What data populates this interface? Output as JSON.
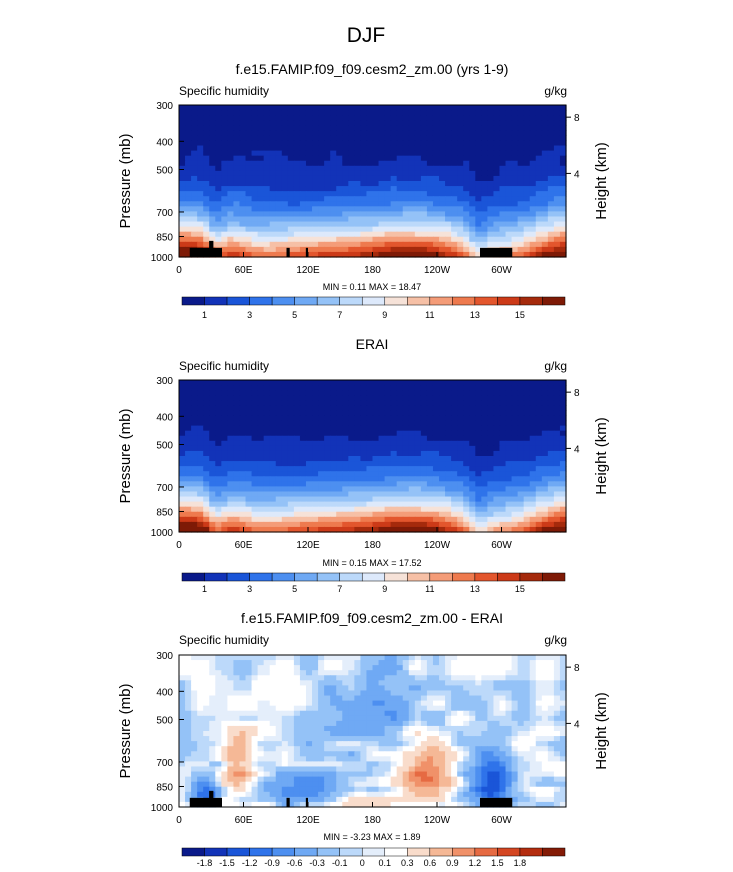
{
  "figure": {
    "suptitle": "DJF"
  },
  "panels": [
    {
      "title": "f.e15.FAMIP.f09_f09.cesm2_zm.00 (yrs 1-9)",
      "left_label": "Specific humidity",
      "right_label": "g/kg",
      "stats": "MIN =  0.11  MAX = 18.47"
    },
    {
      "title": "ERAI",
      "left_label": "Specific humidity",
      "right_label": "g/kg",
      "stats": "MIN =  0.15  MAX = 17.52"
    },
    {
      "title": "f.e15.FAMIP.f09_f09.cesm2_zm.00 - ERAI",
      "left_label": "Specific humidity",
      "right_label": "g/kg",
      "stats": "MIN = -3.23  MAX =  1.89"
    }
  ],
  "chart_data": [
    {
      "type": "heatmap",
      "title": "f.e15.FAMIP.f09_f09.cesm2_zm.00 (yrs 1-9)",
      "xlabel": "",
      "ylabel": "Pressure (mb)",
      "y2label": "Height (km)",
      "x_ticks": [
        "0",
        "60E",
        "120E",
        "180",
        "120W",
        "60W"
      ],
      "y_ticks": [
        300,
        400,
        500,
        700,
        850,
        1000
      ],
      "y2_ticks": [
        4,
        8
      ],
      "ylim": [
        1000,
        300
      ],
      "xlim": [
        0,
        360
      ],
      "variable": "Specific humidity",
      "units": "g/kg",
      "min": 0.11,
      "max": 18.47,
      "colorbar_labels": [
        "1",
        "3",
        "5",
        "7",
        "9",
        "11",
        "13",
        "15"
      ],
      "colorbar_colors": [
        "#0a1a8a",
        "#1233b8",
        "#1a55d8",
        "#2f73ea",
        "#4d8ff0",
        "#6fa9f4",
        "#94c2f7",
        "#bcd9fa",
        "#dde9fb",
        "#f6e2d8",
        "#f6c0a6",
        "#f49c78",
        "#ee7a4e",
        "#e3562d",
        "#cc3a18",
        "#a52a0c",
        "#7e1a06"
      ]
    },
    {
      "type": "heatmap",
      "title": "ERAI",
      "xlabel": "",
      "ylabel": "Pressure (mb)",
      "y2label": "Height (km)",
      "x_ticks": [
        "0",
        "60E",
        "120E",
        "180",
        "120W",
        "60W"
      ],
      "y_ticks": [
        300,
        400,
        500,
        700,
        850,
        1000
      ],
      "y2_ticks": [
        4,
        8
      ],
      "ylim": [
        1000,
        300
      ],
      "xlim": [
        0,
        360
      ],
      "variable": "Specific humidity",
      "units": "g/kg",
      "min": 0.15,
      "max": 17.52,
      "colorbar_labels": [
        "1",
        "3",
        "5",
        "7",
        "9",
        "11",
        "13",
        "15"
      ],
      "colorbar_colors": [
        "#0a1a8a",
        "#1233b8",
        "#1a55d8",
        "#2f73ea",
        "#4d8ff0",
        "#6fa9f4",
        "#94c2f7",
        "#bcd9fa",
        "#dde9fb",
        "#f6e2d8",
        "#f6c0a6",
        "#f49c78",
        "#ee7a4e",
        "#e3562d",
        "#cc3a18",
        "#a52a0c",
        "#7e1a06"
      ]
    },
    {
      "type": "heatmap",
      "title": "f.e15.FAMIP.f09_f09.cesm2_zm.00 - ERAI",
      "xlabel": "",
      "ylabel": "Pressure (mb)",
      "y2label": "Height (km)",
      "x_ticks": [
        "0",
        "60E",
        "120E",
        "180",
        "120W",
        "60W"
      ],
      "y_ticks": [
        300,
        400,
        500,
        700,
        850,
        1000
      ],
      "y2_ticks": [
        4,
        8
      ],
      "ylim": [
        1000,
        300
      ],
      "xlim": [
        0,
        360
      ],
      "variable": "Specific humidity",
      "units": "g/kg",
      "min": -3.23,
      "max": 1.89,
      "colorbar_labels": [
        "-1.8",
        "-1.5",
        "-1.2",
        "-0.9",
        "-0.6",
        "-0.3",
        "-0.1",
        "0",
        "0.1",
        "0.3",
        "0.6",
        "0.9",
        "1.2",
        "1.5",
        "1.8"
      ],
      "colorbar_colors": [
        "#0a1a8a",
        "#1233b8",
        "#1a55d8",
        "#2f73ea",
        "#4d8ff0",
        "#6fa9f4",
        "#94c2f7",
        "#bcd9fa",
        "#e4eefb",
        "#ffffff",
        "#f9dccb",
        "#f5b896",
        "#f09169",
        "#e66a42",
        "#d44622",
        "#b42d0f",
        "#841b06"
      ]
    }
  ]
}
